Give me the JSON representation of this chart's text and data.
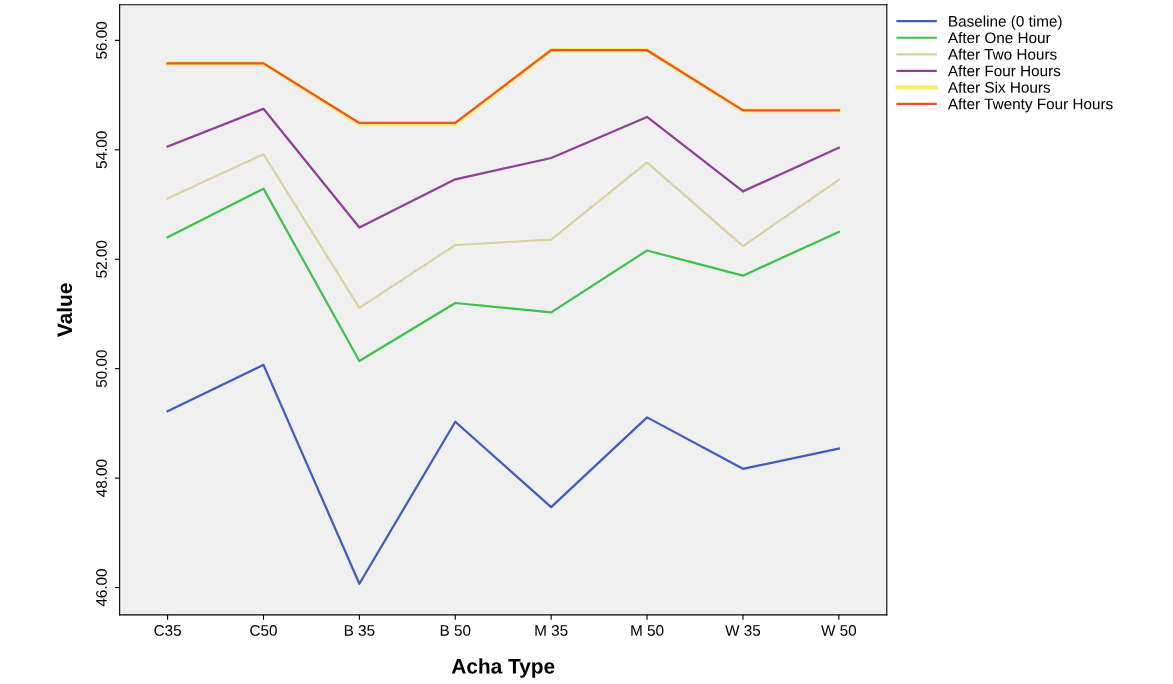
{
  "chart_data": {
    "type": "line",
    "xlabel": "Acha Type",
    "ylabel": "Value",
    "categories": [
      "C35",
      "C50",
      "B 35",
      "B 50",
      "M 35",
      "M 50",
      "W 35",
      "W 50"
    ],
    "series": [
      {
        "name": "Baseline (0 time)",
        "color": "#3e5bbf",
        "values": [
          49.22,
          50.07,
          46.07,
          49.03,
          47.47,
          49.11,
          48.17,
          48.54
        ]
      },
      {
        "name": "After One Hour",
        "color": "#3cc24a",
        "values": [
          52.4,
          53.29,
          50.14,
          51.2,
          51.03,
          52.16,
          51.7,
          52.5
        ]
      },
      {
        "name": "After Two Hours",
        "color": "#d8d29f",
        "values": [
          53.11,
          53.92,
          51.11,
          52.26,
          52.36,
          53.77,
          52.24,
          53.45
        ]
      },
      {
        "name": "After Four Hours",
        "color": "#8e3f97",
        "values": [
          54.06,
          54.75,
          52.58,
          53.46,
          53.85,
          54.6,
          53.24,
          54.04
        ]
      },
      {
        "name": "After Six Hours",
        "color": "#f7f06a",
        "values": [
          55.58,
          55.58,
          54.47,
          54.47,
          55.82,
          55.82,
          54.72,
          54.72
        ]
      },
      {
        "name": "After Twenty Four Hours",
        "color": "#f0502e",
        "values": [
          55.58,
          55.58,
          54.49,
          54.49,
          55.82,
          55.82,
          54.72,
          54.72
        ]
      }
    ],
    "ylim": [
      45.5,
      56.65
    ],
    "yticks": [
      {
        "value": 46,
        "label": "46.00"
      },
      {
        "value": 48,
        "label": "48.00"
      },
      {
        "value": 50,
        "label": "50.00"
      },
      {
        "value": 52,
        "label": "52.00"
      },
      {
        "value": 54,
        "label": "54.00"
      },
      {
        "value": 56,
        "label": "56.00"
      }
    ],
    "grid": false,
    "legend": "top right",
    "marker": "none",
    "line_style": "solid"
  }
}
